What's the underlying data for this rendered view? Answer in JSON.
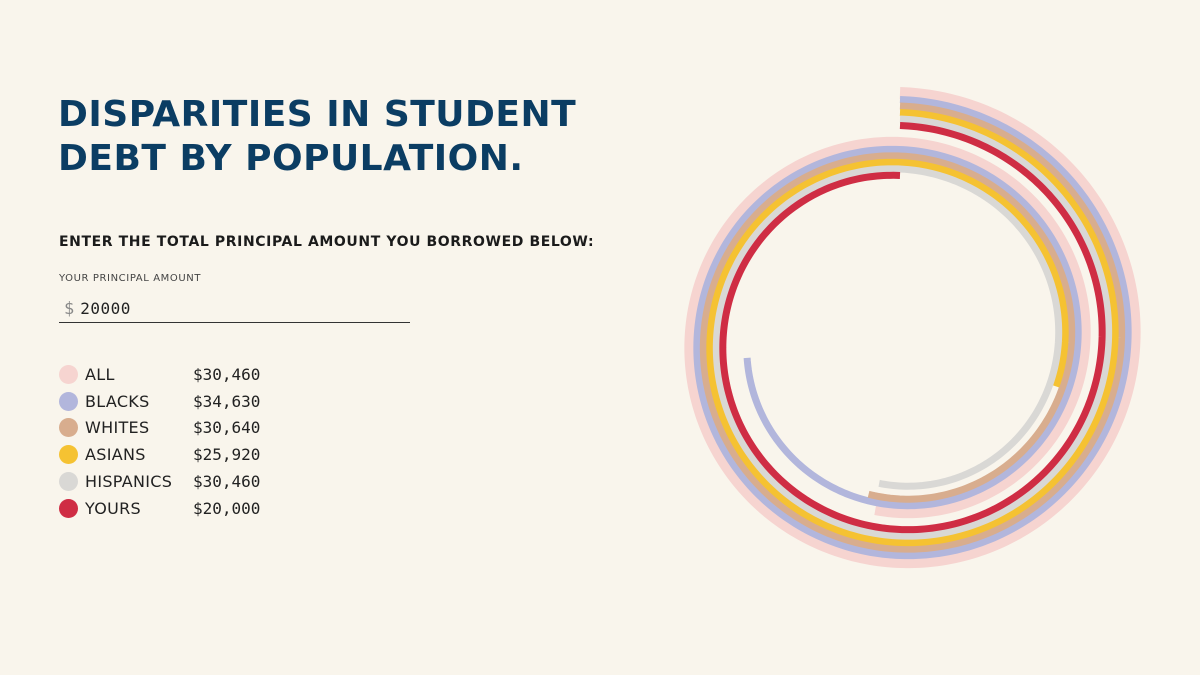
{
  "title": {
    "line1": "DISPARITIES IN STUDENT",
    "line2": "DEBT BY POPULATION."
  },
  "instruction": "ENTER THE TOTAL PRINCIPAL AMOUNT YOU BORROWED BELOW:",
  "input": {
    "label": "YOUR PRINCIPAL AMOUNT",
    "currency_symbol": "$",
    "value": "20000"
  },
  "colors": {
    "background": "#f9f5ec",
    "title": "#0b3d63"
  },
  "chart_data": {
    "type": "radial-bar",
    "full_circle_value": 20000,
    "series": [
      {
        "name": "ALL",
        "value": 30460,
        "display": "$30,460",
        "color": "#f6d4d0"
      },
      {
        "name": "BLACKS",
        "value": 34630,
        "display": "$34,630",
        "color": "#b2b6dc"
      },
      {
        "name": "WHITES",
        "value": 30640,
        "display": "$30,640",
        "color": "#d8ad8e"
      },
      {
        "name": "ASIANS",
        "value": 25920,
        "display": "$25,920",
        "color": "#f5c232"
      },
      {
        "name": "HISPANICS",
        "value": 30460,
        "display": "$30,460",
        "color": "#d9d8d5"
      },
      {
        "name": "YOURS",
        "value": 20000,
        "display": "$20,000",
        "color": "#cf2d44"
      }
    ]
  }
}
